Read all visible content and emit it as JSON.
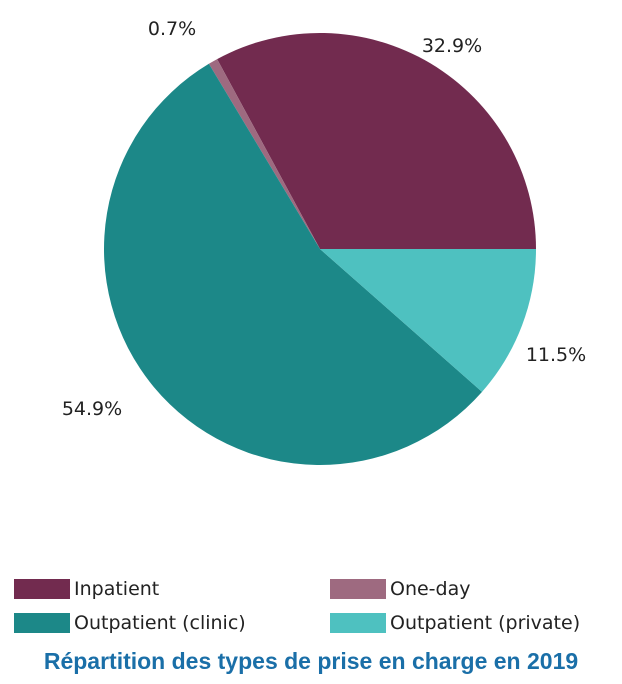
{
  "chart_data": {
    "type": "pie",
    "title": "Répartition des types de prise en charge en 2019",
    "slices": [
      {
        "name": "Inpatient",
        "value": 32.9,
        "label": "32.9%",
        "color": "#722b4f"
      },
      {
        "name": "One-day",
        "value": 0.7,
        "label": "0.7%",
        "color": "#9e6a80"
      },
      {
        "name": "Outpatient (clinic)",
        "value": 54.9,
        "label": "54.9%",
        "color": "#1c8888"
      },
      {
        "name": "Outpatient (private)",
        "value": 11.5,
        "label": "11.5%",
        "color": "#4ec1c0"
      }
    ],
    "start_angle_deg": 0,
    "direction": "counterclockwise",
    "legend_position": "bottom"
  }
}
